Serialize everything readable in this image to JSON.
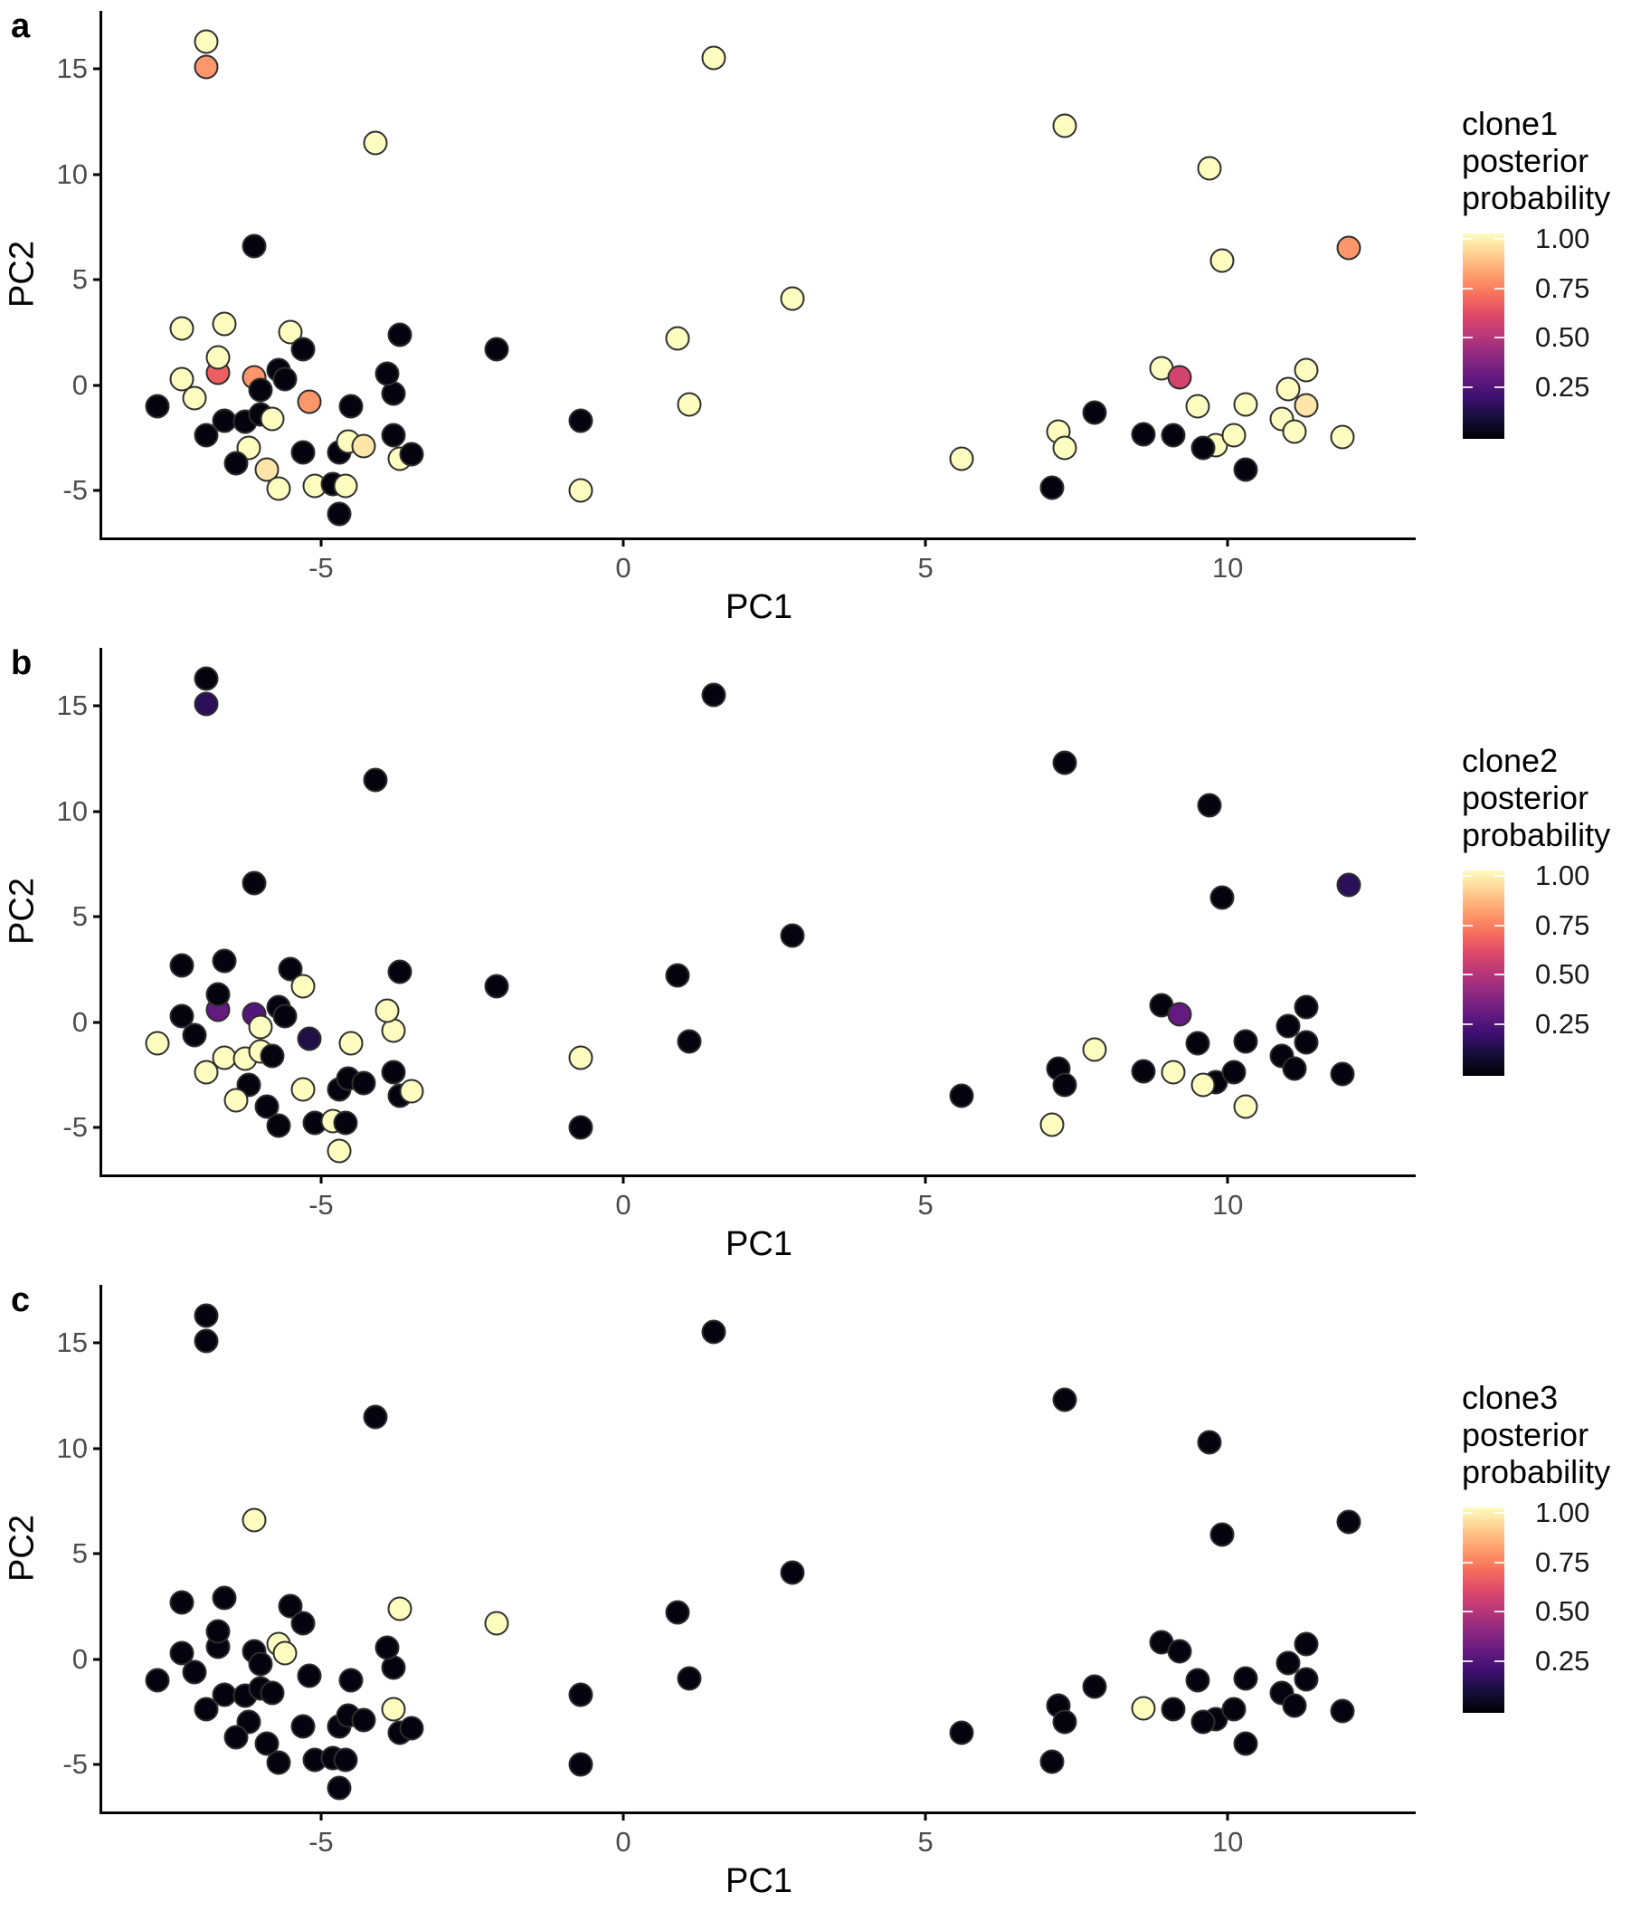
{
  "chart_data": {
    "type": "scatter",
    "xlabel": "PC1",
    "ylabel": "PC2",
    "xlim": [
      -8.62,
      13.11
    ],
    "ylim": [
      -7.23,
      17.75
    ],
    "xticks": [
      -5,
      0,
      5,
      10
    ],
    "yticks": [
      15,
      10,
      5,
      0,
      -5
    ],
    "grid": "off",
    "legend_position": "right",
    "panels": [
      {
        "label": "a",
        "legend_title_lines": [
          "clone1",
          "posterior",
          "probability"
        ]
      },
      {
        "label": "b",
        "legend_title_lines": [
          "clone2",
          "posterior",
          "probability"
        ]
      },
      {
        "label": "c",
        "legend_title_lines": [
          "clone3",
          "posterior",
          "probability"
        ]
      }
    ],
    "legend": {
      "tick_values": [
        1.0,
        0.75,
        0.5,
        0.25
      ],
      "tick_labels": [
        "1.00",
        "0.75",
        "0.50",
        "0.25"
      ]
    },
    "colormap": {
      "name": "magma",
      "stops": [
        {
          "v": 0.0,
          "c": "#000004"
        },
        {
          "v": 0.1,
          "c": "#140e36"
        },
        {
          "v": 0.2,
          "c": "#3b0f70"
        },
        {
          "v": 0.3,
          "c": "#641a80"
        },
        {
          "v": 0.4,
          "c": "#8c2981"
        },
        {
          "v": 0.5,
          "c": "#b73779"
        },
        {
          "v": 0.6,
          "c": "#de4968"
        },
        {
          "v": 0.7,
          "c": "#f7705c"
        },
        {
          "v": 0.8,
          "c": "#fe9f6d"
        },
        {
          "v": 0.9,
          "c": "#fecf92"
        },
        {
          "v": 1.0,
          "c": "#fcfdbf"
        }
      ]
    },
    "points_note": "Each point: PC1, PC2, posterior probabilities [clone1, clone2, clone3]",
    "points": [
      {
        "x": -6.9,
        "y": 16.3,
        "p": [
          1.0,
          0.02,
          0.02
        ]
      },
      {
        "x": -6.9,
        "y": 15.1,
        "p": [
          0.78,
          0.16,
          0.02
        ]
      },
      {
        "x": 1.5,
        "y": 15.5,
        "p": [
          1.0,
          0.02,
          0.02
        ]
      },
      {
        "x": -4.1,
        "y": 11.5,
        "p": [
          1.0,
          0.02,
          0.02
        ]
      },
      {
        "x": 7.3,
        "y": 12.3,
        "p": [
          1.0,
          0.02,
          0.02
        ]
      },
      {
        "x": 9.7,
        "y": 10.3,
        "p": [
          1.0,
          0.02,
          0.02
        ]
      },
      {
        "x": -6.1,
        "y": 6.6,
        "p": [
          0.02,
          0.02,
          1.0
        ]
      },
      {
        "x": 9.9,
        "y": 5.9,
        "p": [
          1.0,
          0.02,
          0.02
        ]
      },
      {
        "x": 12.0,
        "y": 6.5,
        "p": [
          0.78,
          0.16,
          0.02
        ]
      },
      {
        "x": 2.8,
        "y": 4.1,
        "p": [
          1.0,
          0.02,
          0.02
        ]
      },
      {
        "x": -2.1,
        "y": 1.7,
        "p": [
          0.02,
          0.02,
          1.0
        ]
      },
      {
        "x": 0.9,
        "y": 2.2,
        "p": [
          1.0,
          0.02,
          0.02
        ]
      },
      {
        "x": 1.1,
        "y": -0.9,
        "p": [
          1.0,
          0.02,
          0.02
        ]
      },
      {
        "x": -0.7,
        "y": -1.7,
        "p": [
          0.02,
          1.0,
          0.02
        ]
      },
      {
        "x": -0.7,
        "y": -5.0,
        "p": [
          1.0,
          0.02,
          0.02
        ]
      },
      {
        "x": 5.6,
        "y": -3.5,
        "p": [
          1.0,
          0.02,
          0.02
        ]
      },
      {
        "x": -7.3,
        "y": 2.7,
        "p": [
          1.0,
          0.02,
          0.02
        ]
      },
      {
        "x": -6.6,
        "y": 2.9,
        "p": [
          1.0,
          0.02,
          0.02
        ]
      },
      {
        "x": -5.5,
        "y": 2.5,
        "p": [
          1.0,
          0.02,
          0.02
        ]
      },
      {
        "x": -5.3,
        "y": 1.7,
        "p": [
          0.02,
          1.0,
          0.02
        ]
      },
      {
        "x": -3.7,
        "y": 2.4,
        "p": [
          0.02,
          0.02,
          1.0
        ]
      },
      {
        "x": -6.7,
        "y": 0.6,
        "p": [
          0.66,
          0.3,
          0.02
        ]
      },
      {
        "x": -6.7,
        "y": 1.3,
        "p": [
          1.0,
          0.02,
          0.02
        ]
      },
      {
        "x": -7.3,
        "y": 0.3,
        "p": [
          1.0,
          0.02,
          0.02
        ]
      },
      {
        "x": -6.1,
        "y": 0.35,
        "p": [
          0.78,
          0.26,
          0.02
        ]
      },
      {
        "x": -6.0,
        "y": -0.25,
        "p": [
          0.02,
          1.0,
          0.02
        ]
      },
      {
        "x": -5.7,
        "y": 0.7,
        "p": [
          0.02,
          0.02,
          1.0
        ]
      },
      {
        "x": -5.6,
        "y": 0.3,
        "p": [
          0.02,
          0.02,
          1.0
        ]
      },
      {
        "x": -7.1,
        "y": -0.6,
        "p": [
          1.0,
          0.02,
          0.02
        ]
      },
      {
        "x": -7.7,
        "y": -1.0,
        "p": [
          0.02,
          1.0,
          0.02
        ]
      },
      {
        "x": -5.2,
        "y": -0.8,
        "p": [
          0.78,
          0.13,
          0.02
        ]
      },
      {
        "x": -4.5,
        "y": -1.0,
        "p": [
          0.02,
          1.0,
          0.02
        ]
      },
      {
        "x": -3.8,
        "y": -0.4,
        "p": [
          0.02,
          1.0,
          0.02
        ]
      },
      {
        "x": -3.9,
        "y": 0.55,
        "p": [
          0.02,
          1.0,
          0.02
        ]
      },
      {
        "x": -6.6,
        "y": -1.7,
        "p": [
          0.02,
          1.0,
          0.02
        ]
      },
      {
        "x": -6.25,
        "y": -1.75,
        "p": [
          0.02,
          1.0,
          0.02
        ]
      },
      {
        "x": -6.0,
        "y": -1.4,
        "p": [
          0.02,
          1.0,
          0.02
        ]
      },
      {
        "x": -5.8,
        "y": -1.6,
        "p": [
          1.0,
          0.02,
          0.02
        ]
      },
      {
        "x": -6.9,
        "y": -2.4,
        "p": [
          0.02,
          1.0,
          0.02
        ]
      },
      {
        "x": -6.2,
        "y": -3.0,
        "p": [
          1.0,
          0.02,
          0.02
        ]
      },
      {
        "x": -6.4,
        "y": -3.7,
        "p": [
          0.02,
          1.0,
          0.02
        ]
      },
      {
        "x": -5.9,
        "y": -4.0,
        "p": [
          0.95,
          0.02,
          0.02
        ]
      },
      {
        "x": -5.7,
        "y": -4.9,
        "p": [
          1.0,
          0.02,
          0.02
        ]
      },
      {
        "x": -5.3,
        "y": -3.2,
        "p": [
          0.02,
          1.0,
          0.02
        ]
      },
      {
        "x": -4.7,
        "y": -3.2,
        "p": [
          0.02,
          0.02,
          0.02
        ]
      },
      {
        "x": -4.55,
        "y": -2.7,
        "p": [
          1.0,
          0.02,
          0.02
        ]
      },
      {
        "x": -4.3,
        "y": -2.9,
        "p": [
          0.95,
          0.02,
          0.02
        ]
      },
      {
        "x": -3.8,
        "y": -2.4,
        "p": [
          0.02,
          0.02,
          1.0
        ]
      },
      {
        "x": -3.7,
        "y": -3.5,
        "p": [
          1.0,
          0.02,
          0.02
        ]
      },
      {
        "x": -3.5,
        "y": -3.3,
        "p": [
          0.02,
          1.0,
          0.02
        ]
      },
      {
        "x": -5.1,
        "y": -4.8,
        "p": [
          1.0,
          0.02,
          0.02
        ]
      },
      {
        "x": -4.8,
        "y": -4.7,
        "p": [
          0.02,
          1.0,
          0.02
        ]
      },
      {
        "x": -4.6,
        "y": -4.8,
        "p": [
          1.0,
          0.02,
          0.02
        ]
      },
      {
        "x": -4.7,
        "y": -6.1,
        "p": [
          0.02,
          1.0,
          0.02
        ]
      },
      {
        "x": 8.9,
        "y": 0.8,
        "p": [
          1.0,
          0.02,
          0.02
        ]
      },
      {
        "x": 9.2,
        "y": 0.35,
        "p": [
          0.57,
          0.3,
          0.02
        ]
      },
      {
        "x": 7.8,
        "y": -1.3,
        "p": [
          0.02,
          1.0,
          0.02
        ]
      },
      {
        "x": 7.2,
        "y": -2.2,
        "p": [
          1.0,
          0.02,
          0.02
        ]
      },
      {
        "x": 7.3,
        "y": -3.0,
        "p": [
          1.0,
          0.02,
          0.02
        ]
      },
      {
        "x": 7.1,
        "y": -4.85,
        "p": [
          0.02,
          1.0,
          0.02
        ]
      },
      {
        "x": 9.5,
        "y": -1.0,
        "p": [
          1.0,
          0.02,
          0.02
        ]
      },
      {
        "x": 8.6,
        "y": -2.35,
        "p": [
          0.02,
          0.02,
          1.0
        ]
      },
      {
        "x": 9.1,
        "y": -2.4,
        "p": [
          0.02,
          1.0,
          0.02
        ]
      },
      {
        "x": 9.8,
        "y": -2.85,
        "p": [
          1.0,
          0.02,
          0.02
        ]
      },
      {
        "x": 9.6,
        "y": -3.0,
        "p": [
          0.02,
          1.0,
          0.02
        ]
      },
      {
        "x": 10.1,
        "y": -2.4,
        "p": [
          1.0,
          0.02,
          0.02
        ]
      },
      {
        "x": 10.3,
        "y": -4.0,
        "p": [
          0.02,
          1.0,
          0.02
        ]
      },
      {
        "x": 10.3,
        "y": -0.9,
        "p": [
          1.0,
          0.02,
          0.02
        ]
      },
      {
        "x": 11.3,
        "y": 0.7,
        "p": [
          1.0,
          0.02,
          0.02
        ]
      },
      {
        "x": 11.0,
        "y": -0.2,
        "p": [
          1.0,
          0.02,
          0.02
        ]
      },
      {
        "x": 11.3,
        "y": -0.95,
        "p": [
          0.95,
          0.02,
          0.02
        ]
      },
      {
        "x": 10.9,
        "y": -1.6,
        "p": [
          1.0,
          0.02,
          0.02
        ]
      },
      {
        "x": 11.1,
        "y": -2.2,
        "p": [
          1.0,
          0.02,
          0.02
        ]
      },
      {
        "x": 11.9,
        "y": -2.45,
        "p": [
          1.0,
          0.02,
          0.02
        ]
      }
    ]
  }
}
